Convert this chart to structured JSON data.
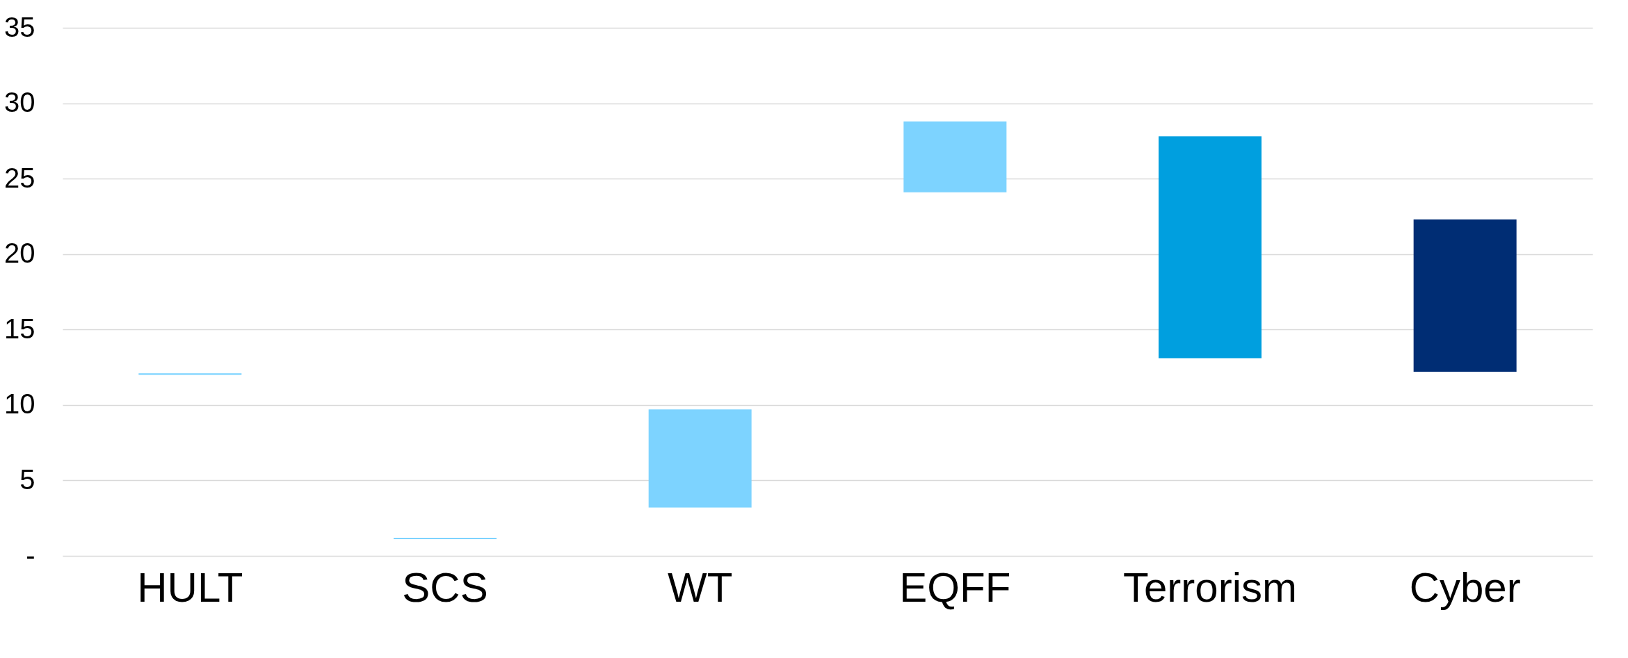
{
  "chart_data": {
    "type": "bar",
    "categories": [
      "HULT",
      "SCS",
      "WT",
      "EQFF",
      "Terrorism",
      "Cyber"
    ],
    "base": [
      12.0,
      1.1,
      3.2,
      24.1,
      13.1,
      12.2
    ],
    "values": [
      0.1,
      0.1,
      6.5,
      4.7,
      14.7,
      10.1
    ],
    "colors": [
      "#7dd3ff",
      "#7dd3ff",
      "#7dd3ff",
      "#7dd3ff",
      "#009fdf",
      "#002d74"
    ],
    "ylim": [
      0,
      35
    ],
    "yticks": [
      {
        "value": 0,
        "label": "-"
      },
      5,
      10,
      15,
      20,
      25,
      30,
      35
    ],
    "grid": "y"
  }
}
